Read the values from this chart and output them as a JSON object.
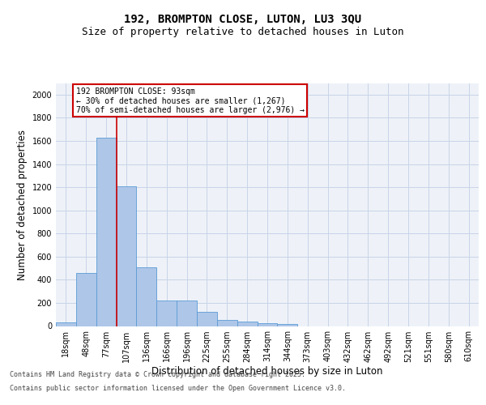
{
  "title1": "192, BROMPTON CLOSE, LUTON, LU3 3QU",
  "title2": "Size of property relative to detached houses in Luton",
  "xlabel": "Distribution of detached houses by size in Luton",
  "ylabel": "Number of detached properties",
  "categories": [
    "18sqm",
    "48sqm",
    "77sqm",
    "107sqm",
    "136sqm",
    "166sqm",
    "196sqm",
    "225sqm",
    "255sqm",
    "284sqm",
    "314sqm",
    "344sqm",
    "373sqm",
    "403sqm",
    "432sqm",
    "462sqm",
    "492sqm",
    "521sqm",
    "551sqm",
    "580sqm",
    "610sqm"
  ],
  "values": [
    35,
    460,
    1625,
    1210,
    505,
    220,
    220,
    125,
    50,
    40,
    25,
    15,
    0,
    0,
    0,
    0,
    0,
    0,
    0,
    0,
    0
  ],
  "bar_color": "#aec6e8",
  "bar_edge_color": "#5b9bd5",
  "red_line_x": 2.5,
  "annotation_line1": "192 BROMPTON CLOSE: 93sqm",
  "annotation_line2": "← 30% of detached houses are smaller (1,267)",
  "annotation_line3": "70% of semi-detached houses are larger (2,976) →",
  "annotation_box_color": "#ffffff",
  "annotation_box_edge": "#cc0000",
  "ylim": [
    0,
    2100
  ],
  "yticks": [
    0,
    200,
    400,
    600,
    800,
    1000,
    1200,
    1400,
    1600,
    1800,
    2000
  ],
  "grid_color": "#c8d4e8",
  "bg_color": "#eef2f8",
  "red_line_color": "#cc0000",
  "footer1": "Contains HM Land Registry data © Crown copyright and database right 2025.",
  "footer2": "Contains public sector information licensed under the Open Government Licence v3.0.",
  "title_fontsize": 10,
  "subtitle_fontsize": 9,
  "tick_fontsize": 7,
  "label_fontsize": 8.5,
  "annotation_fontsize": 7,
  "footer_fontsize": 6
}
